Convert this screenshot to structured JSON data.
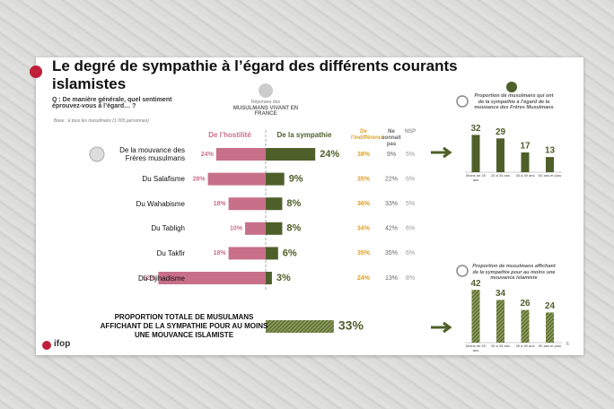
{
  "slide": {
    "title": "Le degré de sympathie à l’égard des différents courants islamistes",
    "question": "Q : De manière générale, quel sentiment éprouvez-vous à l’égard… ?",
    "base": "Base : à tous les musulmans (1 005 personnes)",
    "respondents_intro": "Réponses des",
    "respondents": "MUSULMANS VIVANT EN FRANCE",
    "logo": "ifop",
    "page": "6"
  },
  "chart_data": [
    {
      "type": "diverging_bar",
      "categories": [
        "De la mouvance des Frères musulmans",
        "Du Salafisme",
        "Du Wahabisme",
        "Du Tabligh",
        "Du Takfir",
        "Du Djihadisme"
      ],
      "series": [
        {
          "name": "De l’hostilité",
          "color": "#c8708a",
          "values": [
            24,
            28,
            18,
            10,
            18,
            52
          ],
          "value_labels": [
            "24%",
            "28%",
            "18%",
            "10%",
            "18%",
            "52%"
          ]
        },
        {
          "name": "De la sympathie",
          "color": "#4f5f2a",
          "values": [
            24,
            9,
            8,
            8,
            6,
            3
          ],
          "value_labels": [
            "24%",
            "9%",
            "8%",
            "8%",
            "6%",
            "3%"
          ]
        }
      ],
      "table_columns": [
        {
          "name": "De l’indifférence",
          "color": "#e0a020",
          "values": [
            38,
            35,
            36,
            34,
            35,
            24
          ],
          "value_labels": [
            "38%",
            "35%",
            "36%",
            "34%",
            "35%",
            "24%"
          ]
        },
        {
          "name": "Ne connait pas",
          "color": "#666666",
          "values": [
            9,
            22,
            33,
            42,
            35,
            13
          ],
          "value_labels": [
            "9%",
            "22%",
            "33%",
            "42%",
            "35%",
            "13%"
          ]
        },
        {
          "name": "NSP",
          "color": "#999999",
          "values": [
            5,
            6,
            5,
            6,
            6,
            8
          ],
          "value_labels": [
            "5%",
            "6%",
            "5%",
            "6%",
            "6%",
            "8%"
          ]
        }
      ],
      "total": {
        "label": "PROPORTION TOTALE DE MUSULMANS AFFICHANT DE LA SYMPATHIE POUR AU MOINS UNE MOUVANCE ISLAMISTE",
        "value": 33,
        "value_label": "33%",
        "color": "#4f5f2a",
        "hatch": true
      }
    },
    {
      "type": "bar",
      "title": "Proportion de musulmans qui ont de la sympathie à l’égard de la mouvance des Frères Musulmans",
      "categories": [
        "Moins de 25 ans",
        "25 à 34 ans",
        "35 à 49 ans",
        "50 ans et plus"
      ],
      "values": [
        32,
        29,
        17,
        13
      ],
      "color": "#4f5f2a",
      "hatch": false
    },
    {
      "type": "bar",
      "title": "Proportion de musulmans affichant de la sympathie pour au moins une mouvance islamiste",
      "categories": [
        "Moins de 25 ans",
        "25 à 34 ans",
        "35 à 49 ans",
        "50 ans et plus"
      ],
      "values": [
        42,
        34,
        26,
        24
      ],
      "color": "#4f5f2a",
      "hatch": true
    }
  ]
}
